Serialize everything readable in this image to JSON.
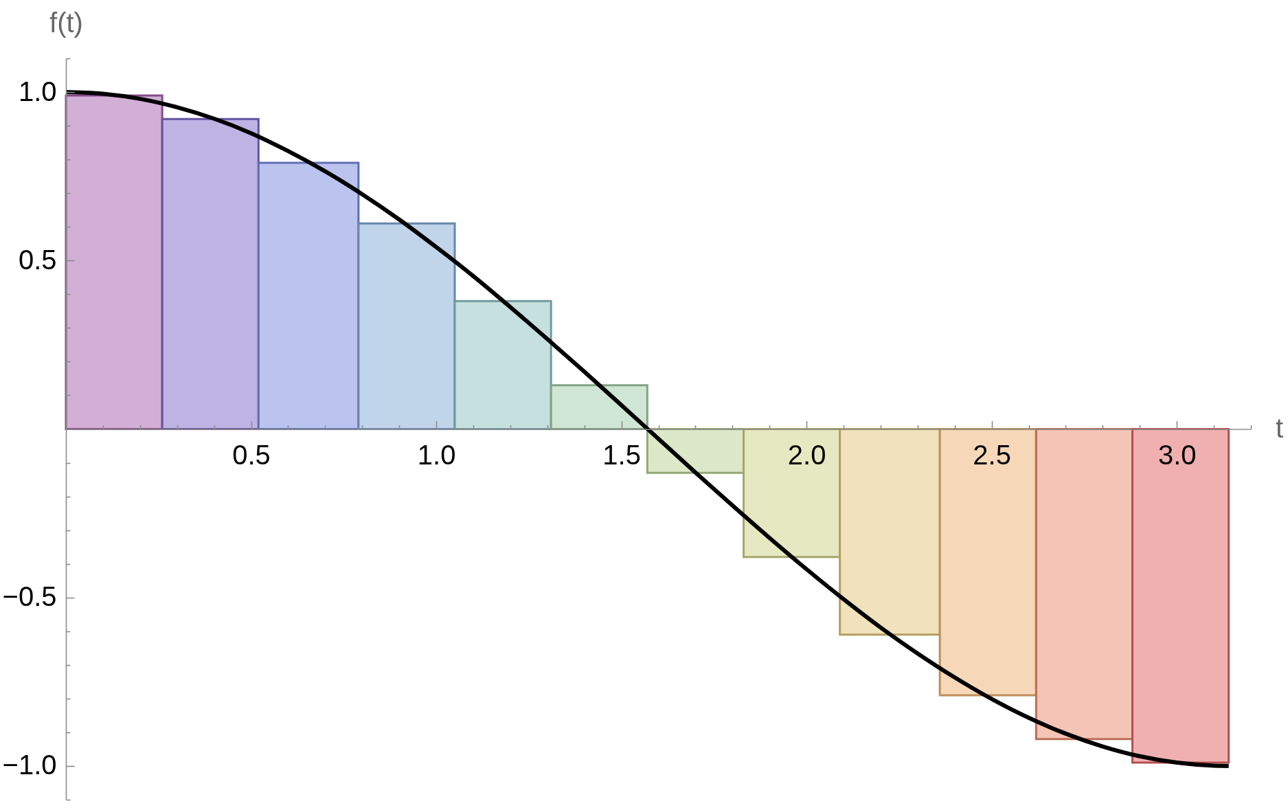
{
  "chart_data": {
    "type": "histogram",
    "xlabel": "t",
    "ylabel": "f(t)",
    "xlim": [
      0,
      3.2
    ],
    "ylim": [
      -1.1,
      1.1
    ],
    "xticks": [
      {
        "value": 0.1,
        "label": null
      },
      {
        "value": 0.2,
        "label": null
      },
      {
        "value": 0.3,
        "label": null
      },
      {
        "value": 0.4,
        "label": null
      },
      {
        "value": 0.5,
        "label": "0.5"
      },
      {
        "value": 0.6,
        "label": null
      },
      {
        "value": 0.7,
        "label": null
      },
      {
        "value": 0.8,
        "label": null
      },
      {
        "value": 0.9,
        "label": null
      },
      {
        "value": 1.0,
        "label": "1.0"
      },
      {
        "value": 1.1,
        "label": null
      },
      {
        "value": 1.2,
        "label": null
      },
      {
        "value": 1.3,
        "label": null
      },
      {
        "value": 1.4,
        "label": null
      },
      {
        "value": 1.5,
        "label": "1.5"
      },
      {
        "value": 1.6,
        "label": null
      },
      {
        "value": 1.7,
        "label": null
      },
      {
        "value": 1.8,
        "label": null
      },
      {
        "value": 1.9,
        "label": null
      },
      {
        "value": 2.0,
        "label": "2.0"
      },
      {
        "value": 2.1,
        "label": null
      },
      {
        "value": 2.2,
        "label": null
      },
      {
        "value": 2.3,
        "label": null
      },
      {
        "value": 2.4,
        "label": null
      },
      {
        "value": 2.5,
        "label": "2.5"
      },
      {
        "value": 2.6,
        "label": null
      },
      {
        "value": 2.7,
        "label": null
      },
      {
        "value": 2.8,
        "label": null
      },
      {
        "value": 2.9,
        "label": null
      },
      {
        "value": 3.0,
        "label": "3.0"
      },
      {
        "value": 3.1,
        "label": null
      },
      {
        "value": 3.2,
        "label": null
      }
    ],
    "yticks": [
      {
        "value": -1.1,
        "label": null
      },
      {
        "value": -1.0,
        "label": "−1.0"
      },
      {
        "value": -0.9,
        "label": null
      },
      {
        "value": -0.8,
        "label": null
      },
      {
        "value": -0.7,
        "label": null
      },
      {
        "value": -0.6,
        "label": null
      },
      {
        "value": -0.5,
        "label": "−0.5"
      },
      {
        "value": -0.4,
        "label": null
      },
      {
        "value": -0.3,
        "label": null
      },
      {
        "value": -0.2,
        "label": null
      },
      {
        "value": -0.1,
        "label": null
      },
      {
        "value": 0.1,
        "label": null
      },
      {
        "value": 0.2,
        "label": null
      },
      {
        "value": 0.3,
        "label": null
      },
      {
        "value": 0.4,
        "label": null
      },
      {
        "value": 0.5,
        "label": "0.5"
      },
      {
        "value": 0.6,
        "label": null
      },
      {
        "value": 0.7,
        "label": null
      },
      {
        "value": 0.8,
        "label": null
      },
      {
        "value": 0.9,
        "label": null
      },
      {
        "value": 1.0,
        "label": "1.0"
      },
      {
        "value": 1.1,
        "label": null
      }
    ],
    "series": [
      {
        "type": "histogram",
        "bins": [
          0,
          0.26,
          0.52,
          0.79,
          1.05,
          1.31,
          1.57,
          1.83,
          2.09,
          2.36,
          2.62,
          2.88,
          3.14
        ],
        "values": [
          0.99,
          0.92,
          0.79,
          0.61,
          0.38,
          0.13,
          -0.13,
          -0.38,
          -0.61,
          -0.79,
          -0.92,
          -0.99
        ],
        "colors": [
          "#d3aed6",
          "#beb4e4",
          "#bbc4ee",
          "#c0d4ea",
          "#c6e0e0",
          "#d0e6d4",
          "#dce8c8",
          "#e6e8c2",
          "#f0e2bc",
          "#f6d8b8",
          "#f4c4b6",
          "#f0b0b0"
        ]
      },
      {
        "type": "line",
        "color": "#000000",
        "x": [
          0,
          0.1,
          0.2,
          0.3,
          0.4,
          0.5,
          0.6,
          0.7,
          0.8,
          0.9,
          1.0,
          1.1,
          1.2,
          1.3,
          1.4,
          1.5,
          1.6,
          1.7,
          1.8,
          1.9,
          2.0,
          2.1,
          2.2,
          2.3,
          2.4,
          2.5,
          2.6,
          2.7,
          2.8,
          2.9,
          3.0,
          3.1,
          3.14
        ],
        "values": [
          1.0,
          0.995,
          0.98,
          0.955,
          0.921,
          0.878,
          0.825,
          0.765,
          0.697,
          0.622,
          0.54,
          0.454,
          0.362,
          0.267,
          0.17,
          0.071,
          -0.029,
          -0.129,
          -0.227,
          -0.323,
          -0.416,
          -0.505,
          -0.589,
          -0.666,
          -0.737,
          -0.801,
          -0.857,
          -0.904,
          -0.942,
          -0.971,
          -0.99,
          -0.999,
          -1.0
        ]
      }
    ]
  }
}
